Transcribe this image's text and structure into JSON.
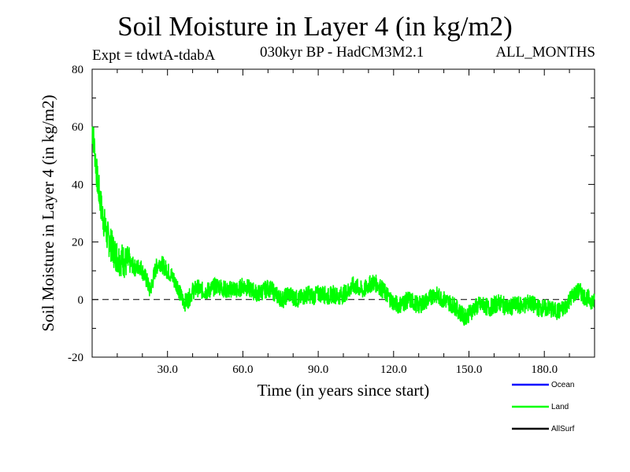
{
  "header": {
    "expt": "Expt = tdwtA-tdabA",
    "subtitle": "030kyr BP - HadCM3M2.1",
    "months": "ALL_MONTHS"
  },
  "chart_data": {
    "type": "line",
    "title": "Soil Moisture in Layer 4 (in kg/m2)",
    "xlabel": "Time (in years since start)",
    "ylabel": "Soil Moisture in Layer 4 (in kg/m2)",
    "xlim": [
      0,
      200
    ],
    "ylim": [
      -20,
      80
    ],
    "x_ticks": [
      30,
      60,
      90,
      120,
      150,
      180
    ],
    "x_tick_labels": [
      "30.0",
      "60.0",
      "90.0",
      "120.0",
      "150.0",
      "180.0"
    ],
    "y_ticks": [
      -20,
      0,
      20,
      40,
      60,
      80
    ],
    "y_tick_labels": [
      "-20",
      "0",
      "20",
      "40",
      "60",
      "80"
    ],
    "reference_line": 0,
    "legend": [
      {
        "name": "Ocean",
        "color": "#0000ff"
      },
      {
        "name": "Land",
        "color": "#00ff00"
      },
      {
        "name": "AllSurf",
        "color": "#000000"
      }
    ],
    "series": [
      {
        "name": "Land",
        "color": "#00ff00",
        "x": [
          0,
          1,
          2,
          3,
          4,
          5,
          6,
          7,
          8,
          9,
          10,
          11,
          12,
          13,
          14,
          15,
          16,
          17,
          18,
          19,
          20,
          21,
          22,
          23,
          24,
          25,
          26,
          27,
          28,
          29,
          30,
          31,
          32,
          33,
          34,
          35,
          36,
          37,
          38,
          39,
          40,
          42,
          44,
          46,
          48,
          50,
          52,
          54,
          56,
          58,
          60,
          62,
          64,
          66,
          68,
          70,
          72,
          74,
          76,
          78,
          80,
          82,
          84,
          86,
          88,
          90,
          92,
          94,
          96,
          98,
          100,
          102,
          104,
          106,
          108,
          110,
          112,
          114,
          116,
          118,
          120,
          122,
          124,
          126,
          128,
          130,
          132,
          134,
          136,
          138,
          140,
          142,
          144,
          146,
          148,
          150,
          152,
          154,
          156,
          158,
          160,
          162,
          164,
          166,
          168,
          170,
          172,
          174,
          176,
          178,
          180,
          182,
          184,
          186,
          188,
          190,
          192,
          194,
          196,
          198,
          200
        ],
        "values": [
          60,
          52,
          42,
          36,
          30,
          26,
          22,
          20,
          18,
          16,
          15,
          14,
          14,
          13,
          13,
          12,
          12,
          11,
          11,
          12,
          10,
          8,
          6,
          3,
          6,
          10,
          12,
          13,
          12,
          11,
          10,
          9,
          8,
          6,
          5,
          2,
          0,
          -1,
          0,
          1,
          3,
          4,
          3,
          3,
          4,
          5,
          4,
          3,
          4,
          3,
          5,
          4,
          3,
          2,
          3,
          4,
          3,
          1,
          0,
          2,
          1,
          0,
          1,
          2,
          1,
          2,
          2,
          1,
          2,
          1,
          2,
          3,
          5,
          4,
          3,
          5,
          6,
          5,
          3,
          1,
          -1,
          -2,
          -1,
          0,
          -1,
          -2,
          -1,
          0,
          2,
          1,
          0,
          -1,
          -2,
          -4,
          -6,
          -5,
          -3,
          -2,
          -2,
          -3,
          -2,
          -1,
          -2,
          -3,
          -2,
          -2,
          -2,
          -1,
          -2,
          -3,
          -3,
          -3,
          -4,
          -4,
          -3,
          0,
          2,
          3,
          1,
          0,
          -1
        ]
      }
    ]
  }
}
